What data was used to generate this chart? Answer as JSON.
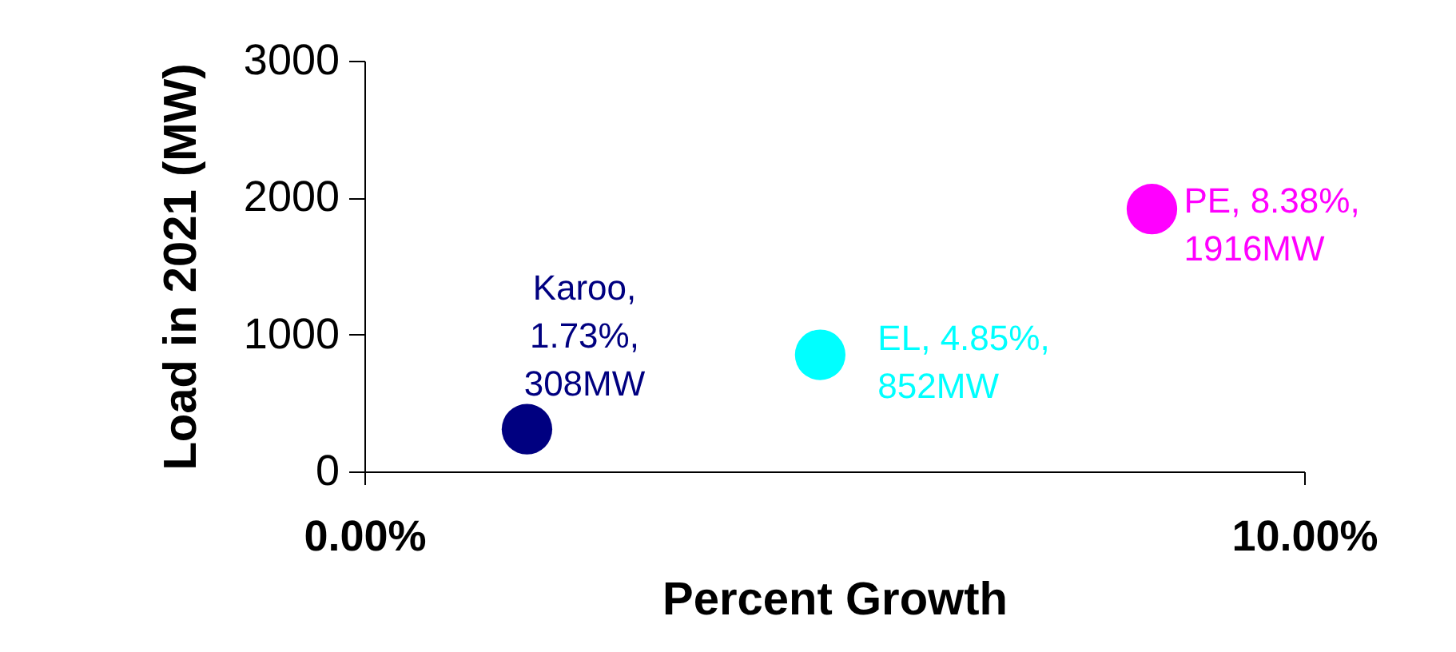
{
  "chart_data": {
    "type": "scatter",
    "xlabel": "Percent Growth",
    "ylabel": "Load in 2021 (MW)",
    "xlim": [
      0,
      10
    ],
    "xticks": [
      {
        "value": 0,
        "label": "0.00%"
      },
      {
        "value": 10,
        "label": "10.00%"
      }
    ],
    "ylim": [
      0,
      3000
    ],
    "yticks": [
      0,
      1000,
      2000,
      3000
    ],
    "grid": false,
    "legend": false,
    "marker": "circle",
    "series": [
      {
        "name": "Karoo",
        "color": "#000080",
        "x": [
          1.73
        ],
        "values": [
          308
        ],
        "value_labels": [
          ", 1.73%, 308MW"
        ]
      },
      {
        "name": "EL",
        "color": "#00ffff",
        "x": [
          4.85
        ],
        "values": [
          852
        ],
        "value_labels": [
          ", 4.85%, 852MW"
        ]
      },
      {
        "name": "PE",
        "color": "#ff00ff",
        "x": [
          8.38
        ],
        "values": [
          1916
        ],
        "value_labels": [
          ", 8.38%, 1916MW"
        ]
      }
    ]
  }
}
